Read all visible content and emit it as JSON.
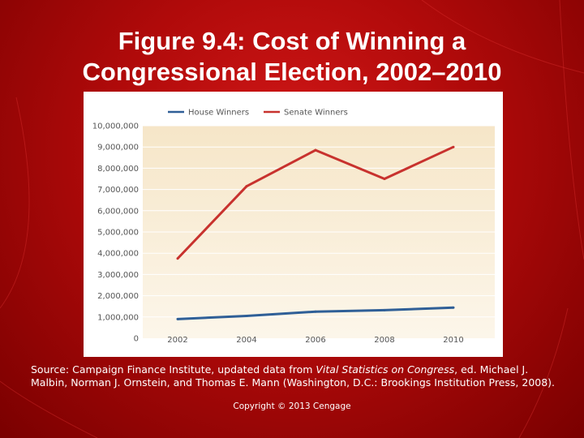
{
  "title_line1": "Figure 9.4: Cost of Winning a",
  "title_line2": "Congressional Election, 2002–2010",
  "source": {
    "prefix": "Source: Campaign Finance Institute, updated data from ",
    "italic": "Vital Statistics on Congress",
    "suffix": ", ed. Michael J. Malbin, Norman J. Ornstein, and Thomas E. Mann (Washington, D.C.: Brookings Institution Press, 2008)."
  },
  "copyright": "Copyright © 2013 Cengage",
  "colors": {
    "background": "#b00a0a",
    "plot_top": "#f6e6c8",
    "plot_bottom": "#fcf6ea",
    "house": "#2f5f97",
    "senate": "#c8322e"
  },
  "chart_data": {
    "type": "line",
    "title": "",
    "xlabel": "",
    "ylabel": "",
    "x": [
      "2002",
      "2004",
      "2006",
      "2008",
      "2010"
    ],
    "ylim": [
      0,
      10000000
    ],
    "yticks": [
      "0",
      "1,000,000",
      "2,000,000",
      "3,000,000",
      "4,000,000",
      "5,000,000",
      "6,000,000",
      "7,000,000",
      "8,000,000",
      "9,000,000",
      "10,000,000"
    ],
    "grid": true,
    "legend_position": "top",
    "series": [
      {
        "name": "House Winners",
        "values": [
          900000,
          1050000,
          1250000,
          1320000,
          1440000
        ],
        "color": "#2f5f97"
      },
      {
        "name": "Senate Winners",
        "values": [
          3750000,
          7150000,
          8850000,
          7500000,
          9000000
        ],
        "color": "#c8322e"
      }
    ]
  }
}
